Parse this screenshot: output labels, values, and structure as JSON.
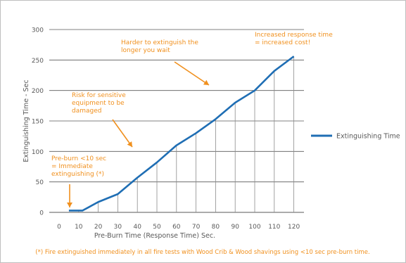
{
  "chart_data": {
    "type": "line",
    "xlabel": "Pre-Burn Time (Response Time) Sec.",
    "ylabel": "Extinguishing Time - Sec",
    "x": [
      5,
      12,
      20,
      30,
      40,
      50,
      60,
      70,
      80,
      90,
      100,
      110,
      120
    ],
    "xticks": [
      0,
      10,
      20,
      30,
      40,
      50,
      60,
      70,
      80,
      90,
      100,
      110,
      120
    ],
    "yticks": [
      0,
      50,
      100,
      150,
      200,
      250,
      300
    ],
    "xlim": [
      0,
      120
    ],
    "ylim": [
      0,
      300
    ],
    "grid": "horizontal; vertical drop lines under the curve",
    "series": [
      {
        "name": "Extinguishing Time",
        "color": "#1f6eb4",
        "values": [
          3,
          3,
          17,
          30,
          57,
          82,
          110,
          130,
          153,
          180,
          200,
          232,
          256
        ]
      }
    ],
    "legend_position": "right",
    "annotations": [
      {
        "lines": [
          "Harder to extinguish the",
          "longer you wait"
        ],
        "arrow_to_xy": [
          80,
          214
        ]
      },
      {
        "lines": [
          "Increased response time",
          "= increased cost!"
        ],
        "arrow_to_xy": null
      },
      {
        "lines": [
          "Risk for sensitive",
          "equipment to be",
          "damaged"
        ],
        "arrow_to_xy": [
          40,
          105
        ]
      },
      {
        "lines": [
          "Pre-burn <10 sec",
          "= Immediate",
          "extinguishing (*)"
        ],
        "arrow_to_xy": [
          5,
          5
        ]
      }
    ],
    "annotation_color": "#f0901e",
    "footnote": "(*) Fire extinguished immediately in all fire tests with Wood Crib & Wood shavings using <10 sec pre-burn time."
  }
}
